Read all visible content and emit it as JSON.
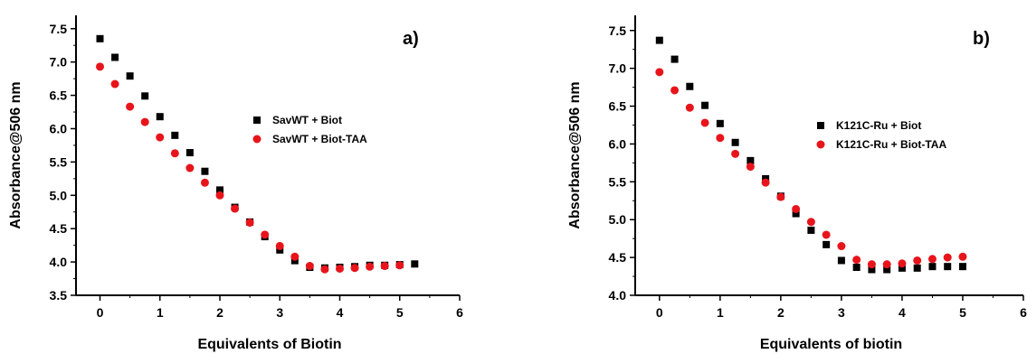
{
  "colors": {
    "series_black": "#000000",
    "series_red": "#e8141b",
    "axis": "#000000",
    "background": "#ffffff"
  },
  "chart_data": [
    {
      "type": "scatter",
      "panel_label": "a)",
      "xlabel": "Equivalents of Biotin",
      "ylabel": "Absorbance@506 nm",
      "xlim": [
        -0.4,
        6
      ],
      "ylim": [
        3.5,
        7.7
      ],
      "xticks": [
        "0",
        "1",
        "2",
        "3",
        "4",
        "5",
        "6"
      ],
      "yticks": [
        "3.5",
        "4.0",
        "4.5",
        "5.0",
        "5.5",
        "6.0",
        "6.5",
        "7.0",
        "7.5"
      ],
      "legend_position": "center-right",
      "series": [
        {
          "name": "SavWT + Biot",
          "marker": "square",
          "color": "#000000",
          "x": [
            0,
            0.25,
            0.5,
            0.75,
            1.0,
            1.25,
            1.5,
            1.75,
            2.0,
            2.25,
            2.5,
            2.75,
            3.0,
            3.25,
            3.5,
            3.75,
            4.0,
            4.25,
            4.5,
            4.75,
            5.0,
            5.25
          ],
          "y": [
            7.35,
            7.07,
            6.79,
            6.49,
            6.18,
            5.9,
            5.64,
            5.36,
            5.08,
            4.82,
            4.6,
            4.38,
            4.18,
            4.02,
            3.92,
            3.91,
            3.92,
            3.93,
            3.95,
            3.95,
            3.96,
            3.97
          ]
        },
        {
          "name": "SavWT + Biot-TAA",
          "marker": "circle",
          "color": "#e8141b",
          "x": [
            0,
            0.25,
            0.5,
            0.75,
            1.0,
            1.25,
            1.5,
            1.75,
            2.0,
            2.25,
            2.5,
            2.75,
            3.0,
            3.25,
            3.5,
            3.75,
            4.0,
            4.25,
            4.5,
            4.75,
            5.0
          ],
          "y": [
            6.93,
            6.67,
            6.33,
            6.1,
            5.87,
            5.63,
            5.41,
            5.19,
            5.0,
            4.8,
            4.59,
            4.41,
            4.24,
            4.08,
            3.94,
            3.89,
            3.9,
            3.91,
            3.93,
            3.94,
            3.95
          ]
        }
      ]
    },
    {
      "type": "scatter",
      "panel_label": "b)",
      "xlabel": "Equivalents of biotin",
      "ylabel": "Absorbance@506 nm",
      "xlim": [
        -0.4,
        6
      ],
      "ylim": [
        4.0,
        7.7
      ],
      "xticks": [
        "0",
        "1",
        "2",
        "3",
        "4",
        "5",
        "6"
      ],
      "yticks": [
        "4.0",
        "4.5",
        "5.0",
        "5.5",
        "6.0",
        "6.5",
        "7.0",
        "7.5"
      ],
      "legend_position": "center-right",
      "series": [
        {
          "name": "K121C-Ru + Biot",
          "marker": "square",
          "color": "#000000",
          "x": [
            0,
            0.25,
            0.5,
            0.75,
            1.0,
            1.25,
            1.5,
            1.75,
            2.0,
            2.25,
            2.5,
            2.75,
            3.0,
            3.25,
            3.5,
            3.75,
            4.0,
            4.25,
            4.5,
            4.75,
            5.0
          ],
          "y": [
            7.37,
            7.12,
            6.76,
            6.51,
            6.27,
            6.02,
            5.78,
            5.54,
            5.31,
            5.08,
            4.86,
            4.67,
            4.46,
            4.37,
            4.34,
            4.34,
            4.36,
            4.36,
            4.38,
            4.38,
            4.38
          ]
        },
        {
          "name": "K121C-Ru + Biot-TAA",
          "marker": "circle",
          "color": "#e8141b",
          "x": [
            0,
            0.25,
            0.5,
            0.75,
            1.0,
            1.25,
            1.5,
            1.75,
            2.0,
            2.25,
            2.5,
            2.75,
            3.0,
            3.25,
            3.5,
            3.75,
            4.0,
            4.25,
            4.5,
            4.75,
            5.0
          ],
          "y": [
            6.95,
            6.71,
            6.48,
            6.28,
            6.08,
            5.87,
            5.7,
            5.49,
            5.3,
            5.14,
            4.97,
            4.8,
            4.65,
            4.47,
            4.41,
            4.41,
            4.42,
            4.46,
            4.48,
            4.5,
            4.51
          ]
        }
      ]
    }
  ]
}
